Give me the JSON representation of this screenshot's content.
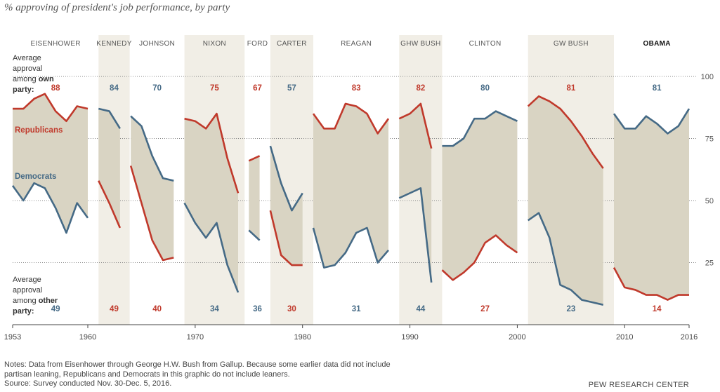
{
  "subtitle": "% approving of president's job performance, by party",
  "notes": "Notes: Data from Eisenhower through George H.W. Bush from Gallup. Because some earlier data did not include partisan leaning, Republicans and Democrats in this graphic do not include leaners.",
  "source": "Source: Survey conducted Nov. 30-Dec. 5, 2016.",
  "brand": "PEW RESEARCH CENTER",
  "colors": {
    "republican": "#c0392b",
    "democrat": "#456a86",
    "fill": "#d9d4c3",
    "band": "#f1eee6",
    "grid": "#888888"
  },
  "chart_data": {
    "type": "line",
    "ylim": [
      0,
      100
    ],
    "xlim": [
      1953,
      2016
    ],
    "yticks": [
      25,
      50,
      75,
      100
    ],
    "xticks": [
      1953,
      1960,
      1970,
      1980,
      1990,
      2000,
      2010,
      2016
    ],
    "label_own": [
      "Average",
      "approval",
      "among",
      "own",
      "party:"
    ],
    "label_other": [
      "Average",
      "approval",
      "among",
      "other",
      "party:"
    ],
    "rep_label": "Republicans",
    "dem_label": "Democrats",
    "presidents": [
      {
        "name": "EISENHOWER",
        "party": "R",
        "start": 1953,
        "end": 1961,
        "band": false,
        "own": "88",
        "other": "49",
        "rep": [
          [
            1953.0,
            87
          ],
          [
            1954.0,
            87
          ],
          [
            1955.0,
            91
          ],
          [
            1956.0,
            93
          ],
          [
            1957.0,
            86
          ],
          [
            1958.0,
            82
          ],
          [
            1959.0,
            88
          ],
          [
            1960.0,
            87
          ]
        ],
        "dem": [
          [
            1953.0,
            56
          ],
          [
            1954.0,
            50
          ],
          [
            1955.0,
            57
          ],
          [
            1956.0,
            55
          ],
          [
            1957.0,
            47
          ],
          [
            1958.0,
            37
          ],
          [
            1959.0,
            49
          ],
          [
            1960.0,
            43
          ]
        ]
      },
      {
        "name": "KENNEDY",
        "party": "D",
        "start": 1961,
        "end": 1963.9,
        "band": true,
        "own": "84",
        "other": "49",
        "rep": [
          [
            1961.0,
            58
          ],
          [
            1962.0,
            49
          ],
          [
            1963.0,
            39
          ]
        ],
        "dem": [
          [
            1961.0,
            87
          ],
          [
            1962.0,
            86
          ],
          [
            1963.0,
            79
          ]
        ]
      },
      {
        "name": "JOHNSON",
        "party": "D",
        "start": 1963.9,
        "end": 1969,
        "band": false,
        "own": "70",
        "other": "40",
        "rep": [
          [
            1964.0,
            64
          ],
          [
            1965.0,
            49
          ],
          [
            1966.0,
            34
          ],
          [
            1967.0,
            26
          ],
          [
            1968.0,
            27
          ]
        ],
        "dem": [
          [
            1964.0,
            84
          ],
          [
            1965.0,
            80
          ],
          [
            1966.0,
            68
          ],
          [
            1967.0,
            59
          ],
          [
            1968.0,
            58
          ]
        ]
      },
      {
        "name": "NIXON",
        "party": "R",
        "start": 1969,
        "end": 1974.6,
        "band": true,
        "own": "75",
        "other": "34",
        "rep": [
          [
            1969.0,
            83
          ],
          [
            1970.0,
            82
          ],
          [
            1971.0,
            79
          ],
          [
            1972.0,
            85
          ],
          [
            1973.0,
            67
          ],
          [
            1974.0,
            53
          ]
        ],
        "dem": [
          [
            1969.0,
            49
          ],
          [
            1970.0,
            41
          ],
          [
            1971.0,
            35
          ],
          [
            1972.0,
            41
          ],
          [
            1973.0,
            24
          ],
          [
            1974.0,
            13
          ]
        ]
      },
      {
        "name": "FORD",
        "party": "R",
        "start": 1974.6,
        "end": 1977,
        "band": false,
        "own": "67",
        "other": "36",
        "rep": [
          [
            1975.0,
            66
          ],
          [
            1976.0,
            68
          ]
        ],
        "dem": [
          [
            1975.0,
            38
          ],
          [
            1976.0,
            34
          ]
        ]
      },
      {
        "name": "CARTER",
        "party": "D",
        "start": 1977,
        "end": 1981,
        "band": true,
        "own": "57",
        "other": "30",
        "rep": [
          [
            1977.0,
            46
          ],
          [
            1978.0,
            28
          ],
          [
            1979.0,
            24
          ],
          [
            1980.0,
            24
          ]
        ],
        "dem": [
          [
            1977.0,
            72
          ],
          [
            1978.0,
            57
          ],
          [
            1979.0,
            46
          ],
          [
            1980.0,
            53
          ]
        ]
      },
      {
        "name": "REAGAN",
        "party": "R",
        "start": 1981,
        "end": 1989,
        "band": false,
        "own": "83",
        "other": "31",
        "rep": [
          [
            1981.0,
            85
          ],
          [
            1982.0,
            79
          ],
          [
            1983.0,
            79
          ],
          [
            1984.0,
            89
          ],
          [
            1985.0,
            88
          ],
          [
            1986.0,
            85
          ],
          [
            1987.0,
            77
          ],
          [
            1988.0,
            83
          ]
        ],
        "dem": [
          [
            1981.0,
            39
          ],
          [
            1982.0,
            23
          ],
          [
            1983.0,
            24
          ],
          [
            1984.0,
            29
          ],
          [
            1985.0,
            37
          ],
          [
            1986.0,
            39
          ],
          [
            1987.0,
            25
          ],
          [
            1988.0,
            30
          ]
        ]
      },
      {
        "name": "GHW BUSH",
        "party": "R",
        "start": 1989,
        "end": 1993,
        "band": true,
        "own": "82",
        "other": "44",
        "rep": [
          [
            1989.0,
            83
          ],
          [
            1990.0,
            85
          ],
          [
            1991.0,
            89
          ],
          [
            1992.0,
            71
          ]
        ],
        "dem": [
          [
            1989.0,
            51
          ],
          [
            1990.0,
            53
          ],
          [
            1991.0,
            55
          ],
          [
            1992.0,
            17
          ]
        ]
      },
      {
        "name": "CLINTON",
        "party": "D",
        "start": 1993,
        "end": 2001,
        "band": false,
        "own": "80",
        "other": "27",
        "rep": [
          [
            1993.0,
            22
          ],
          [
            1994.0,
            18
          ],
          [
            1995.0,
            21
          ],
          [
            1996.0,
            25
          ],
          [
            1997.0,
            33
          ],
          [
            1998.0,
            36
          ],
          [
            1999.0,
            32
          ],
          [
            2000.0,
            29
          ]
        ],
        "dem": [
          [
            1993.0,
            72
          ],
          [
            1994.0,
            72
          ],
          [
            1995.0,
            75
          ],
          [
            1996.0,
            83
          ],
          [
            1997.0,
            83
          ],
          [
            1998.0,
            86
          ],
          [
            1999.0,
            84
          ],
          [
            2000.0,
            82
          ]
        ]
      },
      {
        "name": "GW BUSH",
        "party": "R",
        "start": 2001,
        "end": 2009,
        "band": true,
        "own": "81",
        "other": "23",
        "rep": [
          [
            2001.0,
            88
          ],
          [
            2002.0,
            92
          ],
          [
            2003.0,
            90
          ],
          [
            2004.0,
            87
          ],
          [
            2005.0,
            82
          ],
          [
            2006.0,
            76
          ],
          [
            2007.0,
            69
          ],
          [
            2008.0,
            63
          ]
        ],
        "dem": [
          [
            2001.0,
            42
          ],
          [
            2002.0,
            45
          ],
          [
            2003.0,
            35
          ],
          [
            2004.0,
            16
          ],
          [
            2005.0,
            14
          ],
          [
            2006.0,
            10
          ],
          [
            2007.0,
            9
          ],
          [
            2008.0,
            8
          ]
        ]
      },
      {
        "name": "OBAMA",
        "party": "D",
        "start": 2009,
        "end": 2017,
        "band": false,
        "own": "81",
        "other": "14",
        "rep": [
          [
            2009.0,
            23
          ],
          [
            2010.0,
            15
          ],
          [
            2011.0,
            14
          ],
          [
            2012.0,
            12
          ],
          [
            2013.0,
            12
          ],
          [
            2014.0,
            10
          ],
          [
            2015.0,
            12
          ],
          [
            2016.0,
            12
          ]
        ],
        "dem": [
          [
            2009.0,
            85
          ],
          [
            2010.0,
            79
          ],
          [
            2011.0,
            79
          ],
          [
            2012.0,
            84
          ],
          [
            2013.0,
            81
          ],
          [
            2014.0,
            77
          ],
          [
            2015.0,
            80
          ],
          [
            2016.0,
            87
          ]
        ]
      }
    ]
  }
}
